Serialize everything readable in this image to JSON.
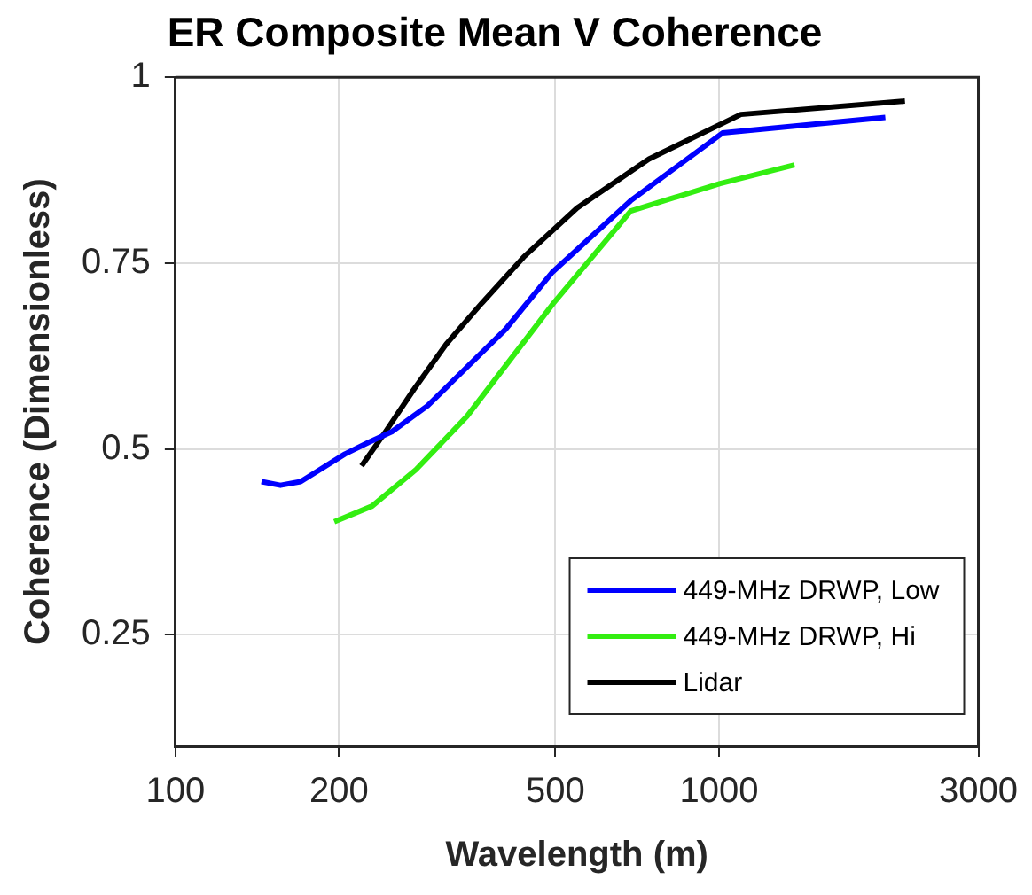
{
  "chart_data": {
    "type": "line",
    "title": "ER Composite Mean V Coherence",
    "xlabel": "Wavelength (m)",
    "ylabel": "Coherence (Dimensionless)",
    "log": "x",
    "xlim": [
      100,
      3000
    ],
    "xticks": [
      100,
      200,
      500,
      1000,
      3000
    ],
    "ylim": [
      0.1,
      1
    ],
    "yticks": [
      0.25,
      0.5,
      0.75,
      1
    ],
    "grid": true,
    "legend": "bottom right",
    "line_style": "solid",
    "marker": "none",
    "series": [
      {
        "name": "449-MHz DRWP, Low",
        "color": "#0000ff",
        "x": [
          144,
          156,
          170,
          205,
          227,
          250,
          291,
          405,
          494,
          688,
          1015,
          2023
        ],
        "values": [
          0.456,
          0.451,
          0.456,
          0.493,
          0.509,
          0.523,
          0.558,
          0.661,
          0.738,
          0.834,
          0.925,
          0.946
        ]
      },
      {
        "name": "449-MHz DRWP, Hi",
        "color": "#33ee11",
        "x": [
          196,
          230,
          277,
          344,
          496,
          688,
          1005,
          1377
        ],
        "values": [
          0.402,
          0.423,
          0.472,
          0.544,
          0.696,
          0.82,
          0.857,
          0.882
        ]
      },
      {
        "name": "Lidar",
        "color": "#000000",
        "x": [
          220,
          244,
          274,
          315,
          366,
          437,
          548,
          743,
          1097,
          2198
        ],
        "values": [
          0.477,
          0.524,
          0.579,
          0.641,
          0.696,
          0.758,
          0.824,
          0.89,
          0.95,
          0.968
        ]
      }
    ]
  }
}
